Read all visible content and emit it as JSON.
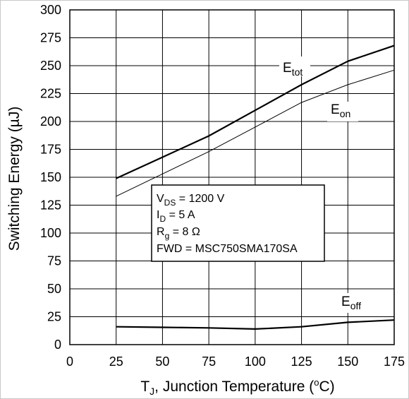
{
  "chart_data": {
    "type": "line",
    "xlabel": {
      "prefix": "T",
      "sub": "J",
      "rest": ", Junction Temperature (",
      "deg": "o",
      "unit": "C)"
    },
    "ylabel": "Switching Energy (µJ)",
    "xlim": [
      0,
      175
    ],
    "ylim": [
      0,
      300
    ],
    "xticks": [
      0,
      25,
      50,
      75,
      100,
      125,
      150,
      175
    ],
    "yticks": [
      0,
      25,
      50,
      75,
      100,
      125,
      150,
      175,
      200,
      225,
      250,
      275,
      300
    ],
    "grid": true,
    "series": [
      {
        "name": "E_tot",
        "label_main": "E",
        "label_sub": "tot",
        "x": [
          25,
          50,
          75,
          100,
          125,
          150,
          175
        ],
        "y": [
          149,
          168,
          187,
          210,
          233,
          254,
          268
        ],
        "line_width": 2.2
      },
      {
        "name": "E_on",
        "label_main": "E",
        "label_sub": "on",
        "x": [
          25,
          50,
          75,
          100,
          125,
          150,
          175
        ],
        "y": [
          133,
          153,
          173,
          195,
          217,
          233,
          246
        ],
        "line_width": 1
      },
      {
        "name": "E_off",
        "label_main": "E",
        "label_sub": "off",
        "x": [
          25,
          50,
          75,
          100,
          125,
          150,
          175
        ],
        "y": [
          16,
          15.5,
          15,
          14,
          16,
          20,
          22
        ],
        "line_width": 2.2
      }
    ],
    "conditions": [
      {
        "main": "V",
        "sub": "DS",
        "rest": " = 1200 V"
      },
      {
        "main": "I",
        "sub": "D",
        "rest": " = 5 A"
      },
      {
        "main": "R",
        "sub": "g",
        "rest": " = 8 Ω"
      },
      {
        "main": "FWD = MSC750SMA170SA",
        "sub": "",
        "rest": ""
      }
    ]
  }
}
